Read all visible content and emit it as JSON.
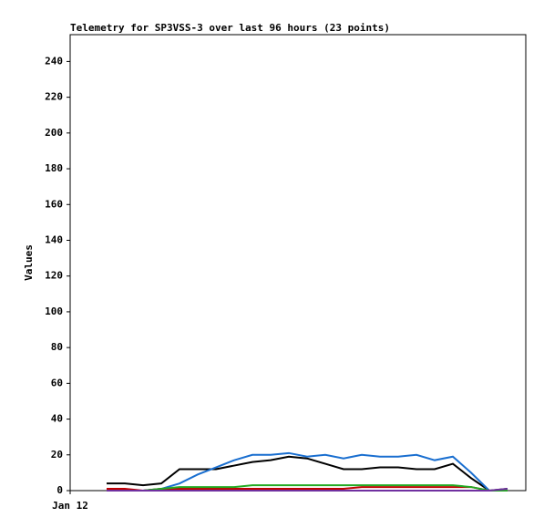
{
  "chart_data": {
    "type": "line",
    "title": "Telemetry for SP3VSS-3 over last 96 hours (23 points)",
    "y_label": "Values",
    "x": [
      8,
      12,
      16,
      20,
      24,
      28,
      32,
      36,
      40,
      44,
      48,
      52,
      56,
      60,
      64,
      68,
      72,
      76,
      80,
      84,
      88,
      92,
      96
    ],
    "xlim": [
      0,
      100
    ],
    "xticks": [
      {
        "value": 0,
        "label": "Jan 12"
      }
    ],
    "ylim": [
      0,
      255
    ],
    "yticks": [
      0,
      20,
      40,
      60,
      80,
      100,
      120,
      140,
      160,
      180,
      200,
      220,
      240
    ],
    "series": [
      {
        "color": "#000000",
        "values": [
          4,
          4,
          3,
          4,
          12,
          12,
          12,
          14,
          16,
          17,
          19,
          18,
          15,
          12,
          12,
          13,
          13,
          12,
          12,
          15,
          7,
          0,
          1
        ]
      },
      {
        "color": "#1a6fd0",
        "values": [
          0,
          0,
          0,
          1,
          4,
          9,
          13,
          17,
          20,
          20,
          21,
          19,
          20,
          18,
          20,
          19,
          19,
          20,
          17,
          19,
          10,
          0,
          0
        ]
      },
      {
        "color": "#c00000",
        "values": [
          1,
          1,
          0,
          1,
          1,
          1,
          1,
          1,
          1,
          1,
          1,
          1,
          1,
          1,
          2,
          2,
          2,
          2,
          2,
          2,
          2,
          0,
          0
        ]
      },
      {
        "color": "#22aa22",
        "values": [
          0,
          0,
          0,
          1,
          2,
          2,
          2,
          2,
          3,
          3,
          3,
          3,
          3,
          3,
          3,
          3,
          3,
          3,
          3,
          3,
          2,
          0,
          0
        ]
      },
      {
        "color": "#7030a0",
        "values": [
          0,
          0,
          0,
          0,
          0,
          0,
          0,
          0,
          0,
          0,
          0,
          0,
          0,
          0,
          0,
          0,
          0,
          0,
          0,
          0,
          0,
          0,
          1
        ]
      }
    ]
  }
}
